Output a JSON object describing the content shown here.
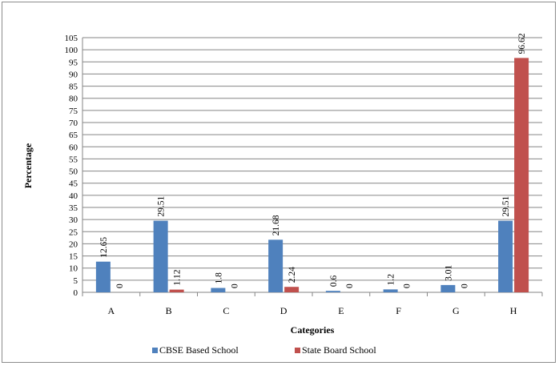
{
  "chart_data": {
    "type": "bar",
    "categories": [
      "A",
      "B",
      "C",
      "D",
      "E",
      "F",
      "G",
      "H"
    ],
    "series": [
      {
        "name": "CBSE Based School",
        "values": [
          12.65,
          29.51,
          1.8,
          21.68,
          0.6,
          1.2,
          3.01,
          29.51
        ],
        "labels": [
          "12.65",
          "29.51",
          "1.8",
          "21.68",
          "0.6",
          "1.2",
          "3.01",
          "29.51"
        ],
        "color": "#4f81bd"
      },
      {
        "name": "State Board School",
        "values": [
          0,
          1.12,
          0,
          2.24,
          0,
          0,
          0,
          96.62
        ],
        "labels": [
          "0",
          "1.12",
          "0",
          "2.24",
          "0",
          "0",
          "0",
          "96.62"
        ],
        "color": "#c0504d"
      }
    ],
    "xlabel": "Categories",
    "ylabel": "Percentage",
    "ylim": [
      0,
      105
    ],
    "ytick_step": 5,
    "grid": true,
    "legend": "bottom"
  }
}
